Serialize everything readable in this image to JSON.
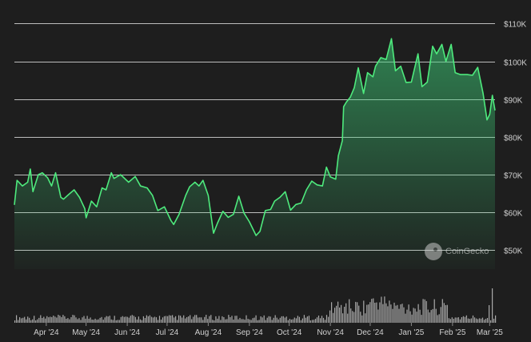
{
  "chart_data": {
    "type": "area",
    "title": "",
    "xlabel": "",
    "ylabel": "",
    "y_ticks": [
      "$50K",
      "$60K",
      "$70K",
      "$80K",
      "$90K",
      "$100K",
      "$110K"
    ],
    "y_tick_values": [
      50000,
      60000,
      70000,
      80000,
      90000,
      100000,
      110000
    ],
    "ylim": [
      45000,
      112000
    ],
    "x_ticks": [
      "Apr '24",
      "May '24",
      "Jun '24",
      "Jul '24",
      "Aug '24",
      "Sep '24",
      "Oct '24",
      "Nov '24",
      "Dec '24",
      "Jan '25",
      "Feb '25",
      "Mar '25"
    ],
    "x_tick_dates": [
      "2024-04-01",
      "2024-05-01",
      "2024-06-01",
      "2024-07-01",
      "2024-08-01",
      "2024-09-01",
      "2024-10-01",
      "2024-11-01",
      "2024-12-01",
      "2025-01-01",
      "2025-02-01",
      "2025-03-01"
    ],
    "xlim": [
      "2024-03-08",
      "2025-03-05"
    ],
    "grid": true,
    "line_color": "#4eea7d",
    "volume_color": "#d8d8d8",
    "series": [
      {
        "x": [
          "2024-03-08",
          "2024-03-10",
          "2024-03-14",
          "2024-03-18",
          "2024-03-20",
          "2024-03-22",
          "2024-03-26",
          "2024-03-29",
          "2024-04-02",
          "2024-04-05",
          "2024-04-08",
          "2024-04-12",
          "2024-04-14",
          "2024-04-18",
          "2024-04-22",
          "2024-04-26",
          "2024-04-30",
          "2024-05-01",
          "2024-05-05",
          "2024-05-09",
          "2024-05-13",
          "2024-05-16",
          "2024-05-20",
          "2024-05-22",
          "2024-05-27",
          "2024-06-02",
          "2024-06-07",
          "2024-06-11",
          "2024-06-16",
          "2024-06-20",
          "2024-06-24",
          "2024-06-29",
          "2024-07-04",
          "2024-07-06",
          "2024-07-10",
          "2024-07-15",
          "2024-07-18",
          "2024-07-22",
          "2024-07-25",
          "2024-07-28",
          "2024-08-01",
          "2024-08-05",
          "2024-08-08",
          "2024-08-12",
          "2024-08-16",
          "2024-08-20",
          "2024-08-24",
          "2024-08-28",
          "2024-09-01",
          "2024-09-06",
          "2024-09-09",
          "2024-09-13",
          "2024-09-17",
          "2024-09-20",
          "2024-09-24",
          "2024-09-28",
          "2024-10-02",
          "2024-10-06",
          "2024-10-10",
          "2024-10-14",
          "2024-10-18",
          "2024-10-22",
          "2024-10-26",
          "2024-10-29",
          "2024-11-01",
          "2024-11-05",
          "2024-11-07",
          "2024-11-10",
          "2024-11-11",
          "2024-11-13",
          "2024-11-16",
          "2024-11-19",
          "2024-11-22",
          "2024-11-26",
          "2024-11-29",
          "2024-12-03",
          "2024-12-05",
          "2024-12-09",
          "2024-12-13",
          "2024-12-17",
          "2024-12-20",
          "2024-12-24",
          "2024-12-28",
          "2025-01-01",
          "2025-01-06",
          "2025-01-09",
          "2025-01-13",
          "2025-01-17",
          "2025-01-20",
          "2025-01-24",
          "2025-01-27",
          "2025-01-31",
          "2025-02-03",
          "2025-02-07",
          "2025-02-12",
          "2025-02-16",
          "2025-02-20",
          "2025-02-24",
          "2025-02-27",
          "2025-03-01",
          "2025-03-03",
          "2025-03-05"
        ],
        "values": [
          62000,
          68500,
          67000,
          68000,
          71500,
          65500,
          70000,
          70500,
          69200,
          67000,
          70500,
          64000,
          63500,
          64800,
          66000,
          64000,
          61000,
          58600,
          63000,
          61500,
          66500,
          66000,
          70500,
          69000,
          70000,
          68000,
          69500,
          67000,
          66500,
          64500,
          60500,
          61500,
          57800,
          56800,
          59500,
          64500,
          66800,
          68000,
          67000,
          68500,
          64500,
          54500,
          57200,
          60300,
          58700,
          59500,
          64300,
          59800,
          57500,
          53900,
          55000,
          60500,
          60800,
          63000,
          64000,
          65500,
          60600,
          62100,
          62500,
          66000,
          68300,
          67300,
          67000,
          72000,
          69400,
          68800,
          75000,
          79000,
          88000,
          89200,
          90500,
          93000,
          98300,
          91500,
          97000,
          95900,
          98700,
          101000,
          100500,
          106000,
          97500,
          98700,
          94400,
          94500,
          102000,
          93300,
          94500,
          104000,
          102000,
          104500,
          100000,
          104500,
          97000,
          96500,
          96500,
          96300,
          98400,
          91500,
          84500,
          86000,
          91000,
          87000
        ]
      }
    ]
  },
  "watermark": {
    "text": "CoinGecko"
  }
}
